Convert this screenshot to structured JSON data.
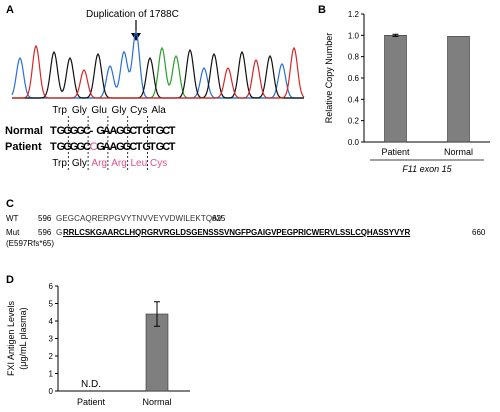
{
  "panelA": {
    "letter": "A",
    "annotation": "Duplication of 1788C",
    "wt_aa": [
      "Trp",
      "Gly",
      "Glu",
      "Gly",
      "Cys",
      "Ala"
    ],
    "mut_aa": [
      "Trp",
      "Gly",
      "Arg",
      "Arg",
      "Leu",
      "Cys"
    ],
    "normal_label": "Normal",
    "patient_label": "Patient",
    "normal_seq": [
      "T",
      "G",
      "G",
      "G",
      "G",
      "C",
      "-",
      "G",
      "A",
      "A",
      "G",
      "G",
      "C",
      "T",
      "G",
      "T",
      "G",
      "C",
      "T"
    ],
    "patient_seq": [
      "T",
      "G",
      "G",
      "G",
      "G",
      "C",
      "C",
      "G",
      "A",
      "A",
      "G",
      "G",
      "C",
      "T",
      "G",
      "T",
      "G",
      "C",
      "T"
    ],
    "highlight_color": "#e0508a",
    "trace_colors": {
      "A": "#2aa02a",
      "C": "#2a6fd6",
      "G": "#111111",
      "T": "#d62728"
    }
  },
  "panelB": {
    "letter": "B",
    "chart_data": {
      "type": "bar",
      "categories": [
        "Patient",
        "Normal"
      ],
      "values": [
        1.0,
        0.99
      ],
      "errors": [
        0.01,
        0.0
      ],
      "ylabel": "Relative Copy Number",
      "xlabel": "F11 exon 15",
      "ylim": [
        0,
        1.2
      ],
      "yticks": [
        "0.0",
        "0.2",
        "0.4",
        "0.6",
        "0.8",
        "1.0",
        "1.2"
      ],
      "bar_color": "#7f7f7f"
    }
  },
  "panelC": {
    "letter": "C",
    "wt_label": "WT",
    "wt_start": "596",
    "wt_seq": "GEGCAQRERPGVYTNVVEYVDWILEKTQAV",
    "wt_end": "625",
    "mut_label": "Mut",
    "mut_sub": "(E597Rfs*65)",
    "mut_start": "596",
    "mut_first": "G",
    "mut_seq": "RRLCSKGAARCLHQRGRVRGLDSGENSSSVNGFPGAIGVPEGPRICWERVLSSLCQHASSYVYR",
    "mut_end": "660"
  },
  "panelD": {
    "letter": "D",
    "chart_data": {
      "type": "bar",
      "categories": [
        "Patient",
        "Normal"
      ],
      "values": [
        null,
        4.4
      ],
      "errors": [
        null,
        0.7
      ],
      "ylabel_lines": [
        "FXI Antigen Levels",
        "(μg/mL plasma)"
      ],
      "ylim": [
        0,
        6
      ],
      "yticks": [
        "0",
        "1",
        "2",
        "3",
        "4",
        "5",
        "6"
      ],
      "nd_label": "N.D.",
      "bar_color": "#7f7f7f"
    }
  }
}
